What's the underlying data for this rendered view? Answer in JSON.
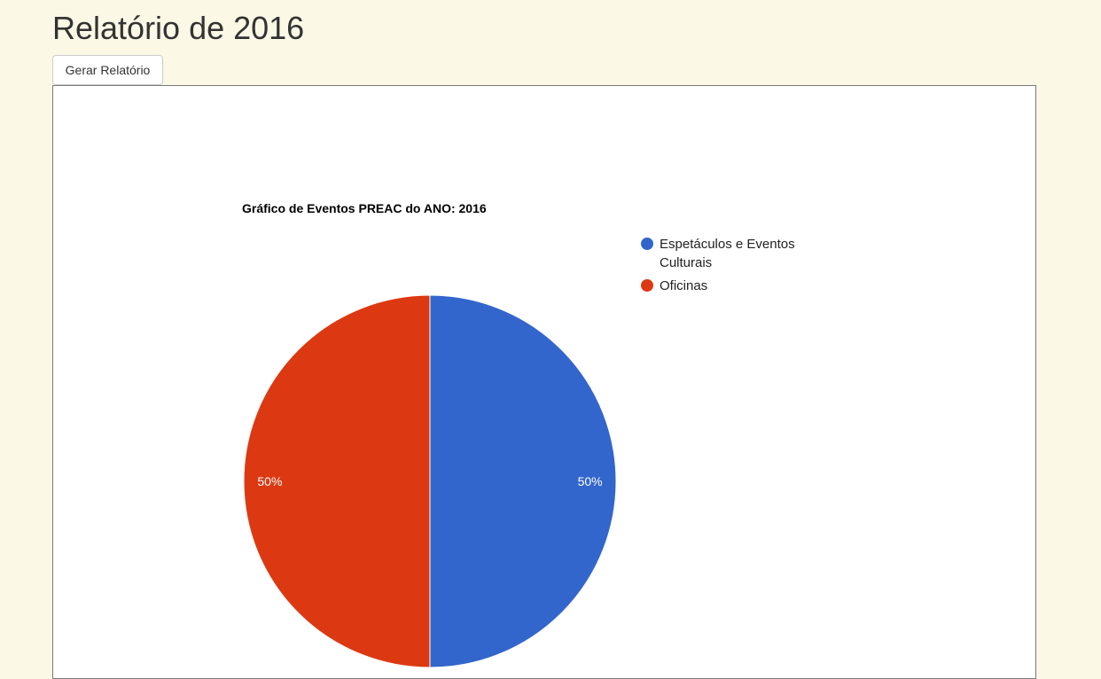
{
  "header": {
    "title": "Relatório de 2016"
  },
  "toolbar": {
    "generate_label": "Gerar Relatório"
  },
  "chart_data": {
    "type": "pie",
    "title": "Gráfico de Eventos PREAC do ANO: 2016",
    "categories": [
      "Espetáculos e Eventos Culturais",
      "Oficinas"
    ],
    "legend_lines": [
      [
        "Espetáculos e Eventos",
        "Culturais"
      ],
      [
        "Oficinas"
      ]
    ],
    "values": [
      50,
      50
    ],
    "slice_labels": [
      "50%",
      "50%"
    ],
    "colors": [
      "#3366cc",
      "#dc3912"
    ],
    "legend_position": "right"
  }
}
